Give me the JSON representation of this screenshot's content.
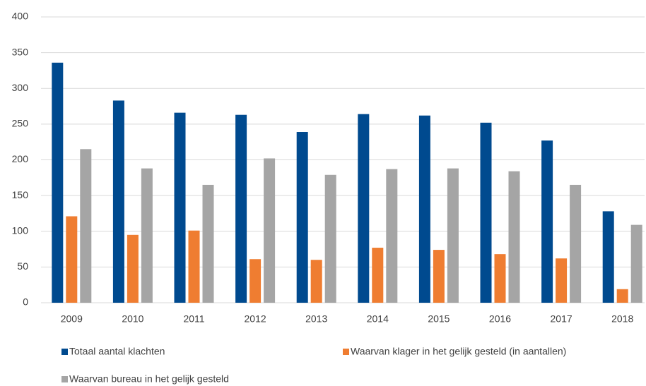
{
  "chart_data": {
    "type": "bar",
    "categories": [
      "2009",
      "2010",
      "2011",
      "2012",
      "2013",
      "2014",
      "2015",
      "2016",
      "2017",
      "2018"
    ],
    "series": [
      {
        "name": "Totaal aantal klachten",
        "color": "#004a8f",
        "values": [
          336,
          283,
          266,
          263,
          239,
          264,
          262,
          252,
          227,
          128
        ]
      },
      {
        "name": "Waarvan klager in het gelijk gesteld (in aantallen)",
        "color": "#ef7d31",
        "values": [
          121,
          95,
          101,
          61,
          60,
          77,
          74,
          68,
          62,
          19
        ]
      },
      {
        "name": "Waarvan bureau in het gelijk gesteld",
        "color": "#a5a5a5",
        "values": [
          215,
          188,
          165,
          202,
          179,
          187,
          188,
          184,
          165,
          109
        ]
      }
    ],
    "ylim": [
      0,
      400
    ],
    "yticks": [
      0,
      50,
      100,
      150,
      200,
      250,
      300,
      350,
      400
    ],
    "grid": true,
    "legend": "bottom"
  }
}
